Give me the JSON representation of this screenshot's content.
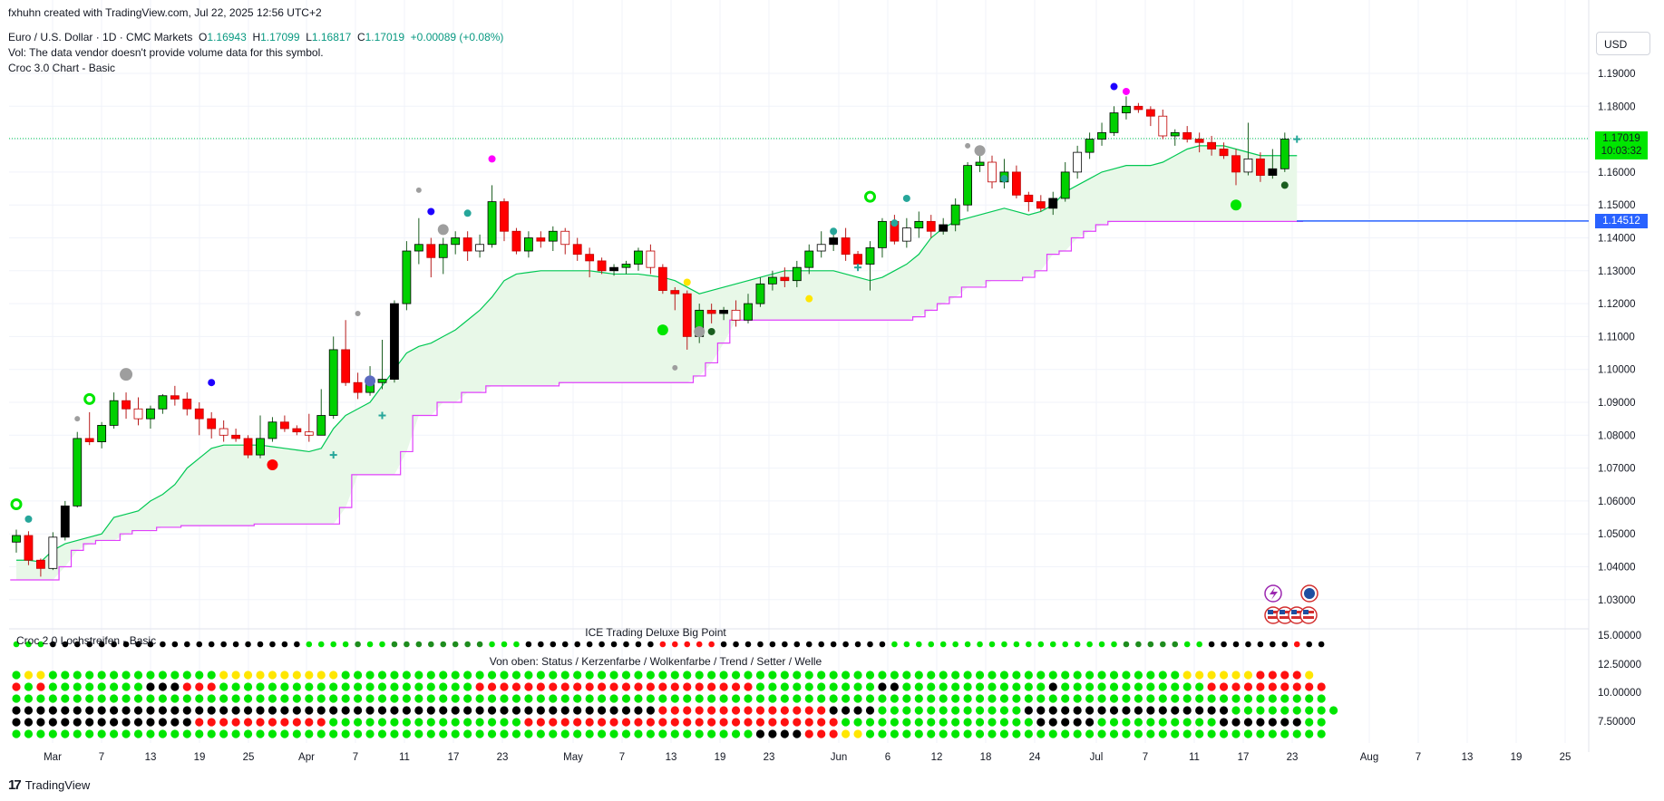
{
  "header": {
    "attribution": "fxhuhn created with TradingView.com, Jul 22, 2025 12:56 UTC+2",
    "symbol": "Euro / U.S. Dollar · 1D · CMC Markets",
    "open_label": "O",
    "open": "1.16943",
    "high_label": "H",
    "high": "1.17099",
    "low_label": "L",
    "low": "1.16817",
    "close_label": "C",
    "close": "1.17019",
    "change": "+0.00089 (+0.08%)",
    "volume_note": "Vol: The data vendor doesn't provide volume data for this symbol.",
    "indicator": "Croc 3.0 Chart - Basic"
  },
  "currency": "USD",
  "last_price": {
    "price": "1.17019",
    "countdown": "10:03:32"
  },
  "horizontal_line": {
    "price": "1.14512",
    "value": 1.14512
  },
  "colors": {
    "up": "#00d000",
    "down": "#ff0000",
    "neutral_body": "#000000",
    "cloud_line": "#00c853",
    "cloud_fill": "#e8f8e8",
    "magenta": "#e040fb",
    "blue_line": "#2962ff",
    "grid": "#f0f3fa"
  },
  "chart_data": {
    "type": "candlestick",
    "y_ticks": [
      "1.19000",
      "1.18000",
      "1.17000",
      "1.16000",
      "1.15000",
      "1.14000",
      "1.13000",
      "1.12000",
      "1.11000",
      "1.10000",
      "1.09000",
      "1.08000",
      "1.07000",
      "1.06000",
      "1.05000",
      "1.04000",
      "1.03000"
    ],
    "ylim": [
      1.022,
      1.196
    ],
    "x_ticks": [
      "Mar",
      "7",
      "13",
      "19",
      "25",
      "Apr",
      "7",
      "11",
      "17",
      "23",
      "May",
      "7",
      "13",
      "19",
      "23",
      "Jun",
      "6",
      "12",
      "18",
      "24",
      "Jul",
      "7",
      "11",
      "17",
      "23",
      "Aug",
      "7",
      "13",
      "19",
      "25"
    ],
    "candles": [
      [
        1.0475,
        1.0513,
        1.0443,
        1.0495
      ],
      [
        1.0495,
        1.0508,
        1.0405,
        1.042
      ],
      [
        1.042,
        1.0425,
        1.037,
        1.0395
      ],
      [
        1.0395,
        1.0505,
        1.039,
        1.049
      ],
      [
        1.049,
        1.06,
        1.048,
        1.0585
      ],
      [
        1.0585,
        1.081,
        1.058,
        1.079
      ],
      [
        1.079,
        1.087,
        1.077,
        1.078
      ],
      [
        1.078,
        1.084,
        1.076,
        1.083
      ],
      [
        1.083,
        1.093,
        1.082,
        1.0905
      ],
      [
        1.0905,
        1.093,
        1.085,
        1.088
      ],
      [
        1.088,
        1.0915,
        1.083,
        1.085
      ],
      [
        1.085,
        1.089,
        1.082,
        1.088
      ],
      [
        1.088,
        1.0925,
        1.0865,
        1.092
      ],
      [
        1.092,
        1.095,
        1.089,
        1.091
      ],
      [
        1.091,
        1.093,
        1.086,
        1.088
      ],
      [
        1.088,
        1.09,
        1.08,
        1.085
      ],
      [
        1.085,
        1.087,
        1.079,
        1.082
      ],
      [
        1.082,
        1.0845,
        1.078,
        1.08
      ],
      [
        1.08,
        1.082,
        1.078,
        1.079
      ],
      [
        1.079,
        1.08,
        1.073,
        1.074
      ],
      [
        1.074,
        1.086,
        1.073,
        1.079
      ],
      [
        1.079,
        1.0855,
        1.078,
        1.084
      ],
      [
        1.084,
        1.086,
        1.081,
        1.082
      ],
      [
        1.082,
        1.083,
        1.08,
        1.081
      ],
      [
        1.081,
        1.0865,
        1.078,
        1.08
      ],
      [
        1.08,
        1.094,
        1.08,
        1.086
      ],
      [
        1.086,
        1.11,
        1.085,
        1.106
      ],
      [
        1.106,
        1.115,
        1.095,
        1.096
      ],
      [
        1.096,
        1.099,
        1.091,
        1.093
      ],
      [
        1.093,
        1.101,
        1.092,
        1.096
      ],
      [
        1.096,
        1.109,
        1.094,
        1.097
      ],
      [
        1.097,
        1.121,
        1.096,
        1.12
      ],
      [
        1.12,
        1.139,
        1.118,
        1.136
      ],
      [
        1.136,
        1.146,
        1.132,
        1.138
      ],
      [
        1.138,
        1.14,
        1.128,
        1.134
      ],
      [
        1.134,
        1.14,
        1.129,
        1.138
      ],
      [
        1.138,
        1.142,
        1.135,
        1.14
      ],
      [
        1.14,
        1.142,
        1.133,
        1.136
      ],
      [
        1.136,
        1.141,
        1.134,
        1.138
      ],
      [
        1.138,
        1.156,
        1.137,
        1.151
      ],
      [
        1.151,
        1.152,
        1.139,
        1.142
      ],
      [
        1.142,
        1.143,
        1.135,
        1.136
      ],
      [
        1.136,
        1.142,
        1.134,
        1.14
      ],
      [
        1.14,
        1.142,
        1.137,
        1.139
      ],
      [
        1.139,
        1.1435,
        1.136,
        1.142
      ],
      [
        1.142,
        1.143,
        1.135,
        1.138
      ],
      [
        1.138,
        1.14,
        1.133,
        1.135
      ],
      [
        1.135,
        1.137,
        1.128,
        1.133
      ],
      [
        1.133,
        1.134,
        1.129,
        1.13
      ],
      [
        1.13,
        1.132,
        1.1285,
        1.131
      ],
      [
        1.131,
        1.133,
        1.129,
        1.132
      ],
      [
        1.132,
        1.137,
        1.13,
        1.136
      ],
      [
        1.136,
        1.138,
        1.129,
        1.131
      ],
      [
        1.131,
        1.132,
        1.123,
        1.124
      ],
      [
        1.124,
        1.125,
        1.118,
        1.123
      ],
      [
        1.123,
        1.124,
        1.106,
        1.11
      ],
      [
        1.11,
        1.12,
        1.108,
        1.118
      ],
      [
        1.118,
        1.12,
        1.114,
        1.117
      ],
      [
        1.117,
        1.119,
        1.115,
        1.118
      ],
      [
        1.118,
        1.121,
        1.113,
        1.115
      ],
      [
        1.115,
        1.123,
        1.114,
        1.12
      ],
      [
        1.12,
        1.128,
        1.119,
        1.126
      ],
      [
        1.126,
        1.13,
        1.124,
        1.128
      ],
      [
        1.128,
        1.131,
        1.125,
        1.127
      ],
      [
        1.127,
        1.133,
        1.125,
        1.131
      ],
      [
        1.131,
        1.138,
        1.129,
        1.136
      ],
      [
        1.136,
        1.142,
        1.134,
        1.138
      ],
      [
        1.138,
        1.143,
        1.136,
        1.14
      ],
      [
        1.14,
        1.143,
        1.133,
        1.135
      ],
      [
        1.135,
        1.136,
        1.13,
        1.132
      ],
      [
        1.132,
        1.139,
        1.124,
        1.137
      ],
      [
        1.137,
        1.146,
        1.134,
        1.145
      ],
      [
        1.145,
        1.147,
        1.138,
        1.139
      ],
      [
        1.139,
        1.146,
        1.137,
        1.143
      ],
      [
        1.143,
        1.148,
        1.14,
        1.145
      ],
      [
        1.145,
        1.147,
        1.14,
        1.142
      ],
      [
        1.142,
        1.146,
        1.141,
        1.144
      ],
      [
        1.144,
        1.152,
        1.142,
        1.15
      ],
      [
        1.15,
        1.163,
        1.148,
        1.162
      ],
      [
        1.162,
        1.166,
        1.16,
        1.163
      ],
      [
        1.163,
        1.165,
        1.155,
        1.157
      ],
      [
        1.157,
        1.164,
        1.155,
        1.16
      ],
      [
        1.16,
        1.162,
        1.152,
        1.153
      ],
      [
        1.153,
        1.154,
        1.148,
        1.151
      ],
      [
        1.151,
        1.153,
        1.148,
        1.149
      ],
      [
        1.149,
        1.154,
        1.147,
        1.152
      ],
      [
        1.152,
        1.163,
        1.151,
        1.16
      ],
      [
        1.16,
        1.168,
        1.158,
        1.166
      ],
      [
        1.166,
        1.172,
        1.164,
        1.17
      ],
      [
        1.17,
        1.175,
        1.168,
        1.172
      ],
      [
        1.172,
        1.18,
        1.171,
        1.178
      ],
      [
        1.178,
        1.183,
        1.176,
        1.18
      ],
      [
        1.18,
        1.181,
        1.178,
        1.179
      ],
      [
        1.179,
        1.18,
        1.174,
        1.177
      ],
      [
        1.177,
        1.179,
        1.17,
        1.171
      ],
      [
        1.171,
        1.173,
        1.168,
        1.172
      ],
      [
        1.172,
        1.174,
        1.169,
        1.17
      ],
      [
        1.17,
        1.172,
        1.166,
        1.169
      ],
      [
        1.169,
        1.171,
        1.165,
        1.167
      ],
      [
        1.167,
        1.169,
        1.164,
        1.165
      ],
      [
        1.165,
        1.167,
        1.156,
        1.16
      ],
      [
        1.16,
        1.175,
        1.159,
        1.164
      ],
      [
        1.164,
        1.166,
        1.157,
        1.159
      ],
      [
        1.159,
        1.167,
        1.158,
        1.161
      ],
      [
        1.161,
        1.172,
        1.16,
        1.17
      ]
    ],
    "cloud_upper": [
      1.042,
      1.042,
      1.0415,
      1.045,
      1.047,
      1.048,
      1.049,
      1.05,
      1.055,
      1.056,
      1.057,
      1.06,
      1.062,
      1.065,
      1.07,
      1.073,
      1.076,
      1.077,
      1.077,
      1.077,
      1.077,
      1.0765,
      1.076,
      1.0755,
      1.075,
      1.076,
      1.082,
      1.086,
      1.088,
      1.09,
      1.095,
      1.1,
      1.105,
      1.107,
      1.108,
      1.11,
      1.112,
      1.115,
      1.118,
      1.122,
      1.127,
      1.129,
      1.1295,
      1.13,
      1.13,
      1.13,
      1.13,
      1.13,
      1.1295,
      1.129,
      1.129,
      1.129,
      1.1285,
      1.128,
      1.127,
      1.125,
      1.123,
      1.124,
      1.125,
      1.126,
      1.127,
      1.128,
      1.129,
      1.13,
      1.13,
      1.13,
      1.13,
      1.13,
      1.129,
      1.128,
      1.127,
      1.128,
      1.13,
      1.132,
      1.135,
      1.14,
      1.143,
      1.145,
      1.146,
      1.147,
      1.148,
      1.149,
      1.148,
      1.147,
      1.148,
      1.15,
      1.154,
      1.156,
      1.158,
      1.16,
      1.161,
      1.162,
      1.162,
      1.162,
      1.163,
      1.165,
      1.167,
      1.168,
      1.168,
      1.168,
      1.167,
      1.166,
      1.165,
      1.165,
      1.165,
      1.165
    ],
    "cloud_lower": [
      1.036,
      1.036,
      1.036,
      1.036,
      1.04,
      1.045,
      1.047,
      1.048,
      1.048,
      1.05,
      1.051,
      1.051,
      1.052,
      1.052,
      1.0525,
      1.0525,
      1.0525,
      1.0525,
      1.0525,
      1.0525,
      1.053,
      1.053,
      1.053,
      1.053,
      1.053,
      1.053,
      1.053,
      1.058,
      1.068,
      1.068,
      1.068,
      1.068,
      1.075,
      1.086,
      1.086,
      1.09,
      1.09,
      1.093,
      1.093,
      1.095,
      1.095,
      1.095,
      1.095,
      1.095,
      1.095,
      1.096,
      1.096,
      1.096,
      1.096,
      1.096,
      1.096,
      1.096,
      1.096,
      1.096,
      1.096,
      1.096,
      1.098,
      1.102,
      1.108,
      1.115,
      1.115,
      1.115,
      1.115,
      1.115,
      1.115,
      1.115,
      1.115,
      1.115,
      1.115,
      1.115,
      1.115,
      1.115,
      1.115,
      1.115,
      1.116,
      1.118,
      1.12,
      1.122,
      1.125,
      1.125,
      1.127,
      1.127,
      1.127,
      1.128,
      1.13,
      1.135,
      1.136,
      1.14,
      1.142,
      1.144,
      1.145,
      1.145,
      1.145,
      1.145,
      1.145,
      1.145,
      1.145,
      1.145,
      1.145,
      1.145,
      1.145,
      1.145,
      1.145,
      1.145,
      1.145,
      1.145
    ],
    "markers": [
      {
        "i": 0,
        "price": 1.059,
        "kind": "ring",
        "color": "#00e600",
        "r": 5
      },
      {
        "i": 1,
        "price": 1.0545,
        "kind": "dot",
        "color": "#26a69a",
        "r": 4
      },
      {
        "i": 5,
        "price": 1.085,
        "kind": "dot",
        "color": "#9e9e9e",
        "r": 3
      },
      {
        "i": 6,
        "price": 1.091,
        "kind": "ring",
        "color": "#00e600",
        "r": 5
      },
      {
        "i": 9,
        "price": 1.0985,
        "kind": "dot",
        "color": "#9e9e9e",
        "r": 7
      },
      {
        "i": 16,
        "price": 1.096,
        "kind": "dot",
        "color": "#1e00ff",
        "r": 4
      },
      {
        "i": 21,
        "price": 1.071,
        "kind": "dot",
        "color": "#ff0000",
        "r": 6
      },
      {
        "i": 26,
        "price": 1.074,
        "kind": "plus",
        "color": "#26a69a",
        "r": 4
      },
      {
        "i": 28,
        "price": 1.117,
        "kind": "dot",
        "color": "#9e9e9e",
        "r": 3
      },
      {
        "i": 29,
        "price": 1.0965,
        "kind": "dot",
        "color": "#5c6bc0",
        "r": 6
      },
      {
        "i": 30,
        "price": 1.086,
        "kind": "plus",
        "color": "#26a69a",
        "r": 4
      },
      {
        "i": 33,
        "price": 1.1545,
        "kind": "dot",
        "color": "#9e9e9e",
        "r": 3
      },
      {
        "i": 34,
        "price": 1.148,
        "kind": "dot",
        "color": "#1e00ff",
        "r": 4
      },
      {
        "i": 35,
        "price": 1.1425,
        "kind": "dot",
        "color": "#9e9e9e",
        "r": 6
      },
      {
        "i": 37,
        "price": 1.1475,
        "kind": "dot",
        "color": "#26a69a",
        "r": 4
      },
      {
        "i": 39,
        "price": 1.164,
        "kind": "dot",
        "color": "#ff00ff",
        "r": 4
      },
      {
        "i": 53,
        "price": 1.112,
        "kind": "dot",
        "color": "#00e600",
        "r": 6
      },
      {
        "i": 54,
        "price": 1.1005,
        "kind": "dot",
        "color": "#9e9e9e",
        "r": 3
      },
      {
        "i": 55,
        "price": 1.1265,
        "kind": "dot",
        "color": "#ffe600",
        "r": 4
      },
      {
        "i": 56,
        "price": 1.1115,
        "kind": "dot",
        "color": "#9e9e9e",
        "r": 6
      },
      {
        "i": 57,
        "price": 1.1115,
        "kind": "dot",
        "color": "#1b5e20",
        "r": 4
      },
      {
        "i": 65,
        "price": 1.1215,
        "kind": "dot",
        "color": "#ffe600",
        "r": 4
      },
      {
        "i": 67,
        "price": 1.142,
        "kind": "dot",
        "color": "#26a69a",
        "r": 4
      },
      {
        "i": 69,
        "price": 1.131,
        "kind": "plus",
        "color": "#26a69a",
        "r": 4
      },
      {
        "i": 70,
        "price": 1.1525,
        "kind": "ring",
        "color": "#00e600",
        "r": 5
      },
      {
        "i": 72,
        "price": 1.1445,
        "kind": "dot",
        "color": "#26a69a",
        "r": 4
      },
      {
        "i": 73,
        "price": 1.152,
        "kind": "dot",
        "color": "#26a69a",
        "r": 4
      },
      {
        "i": 78,
        "price": 1.168,
        "kind": "dot",
        "color": "#9e9e9e",
        "r": 3
      },
      {
        "i": 79,
        "price": 1.1665,
        "kind": "dot",
        "color": "#9e9e9e",
        "r": 6
      },
      {
        "i": 81,
        "price": 1.158,
        "kind": "dot",
        "color": "#26a69a",
        "r": 4
      },
      {
        "i": 90,
        "price": 1.186,
        "kind": "dot",
        "color": "#1e00ff",
        "r": 4
      },
      {
        "i": 91,
        "price": 1.1845,
        "kind": "dot",
        "color": "#ff00ff",
        "r": 4
      },
      {
        "i": 100,
        "price": 1.15,
        "kind": "dot",
        "color": "#00e600",
        "r": 6
      },
      {
        "i": 104,
        "price": 1.156,
        "kind": "dot",
        "color": "#1b5e20",
        "r": 4
      },
      {
        "i": 105,
        "price": 1.17,
        "kind": "plus",
        "color": "#26a69a",
        "r": 4
      }
    ],
    "subpane": {
      "title": "ICE Trading Deluxe Big Point",
      "subtitle": "Von oben: Status / Kerzenfarbe / Wolkenfarbe / Trend / Setter / Welle",
      "label": "Croc 2.0 Lochstreifen - Basic",
      "y_ticks": [
        "15.00000",
        "12.50000",
        "10.00000",
        "7.50000"
      ],
      "dot_colors": {
        "G": "#00e600",
        "D": "#1e8c1e",
        "K": "#000000",
        "R": "#ff1010",
        "Y": "#ffe600"
      },
      "rows": [
        "GGGKKKKKKKKKKKKKKKKKKKKKGGGGDGGDDDDDDDDGGGKKKKKKKKKKKRRRRRKKKKKKKKKKKKKKGGGGGGGGGGGGGGGGGGGDDDDDGGKKKKKKKRKK",
        "GYYGGGGGGGGGGGGGGYYYYYYYYYYGGGGGGGGGGGGGGGGGGGGGGGGGGGGGGGGGGGGGGGGGGGGGGGGGGGGGGGGGGGGGGGGGGGGGYYYYYYRRRRY",
        "RGRGGGGGGGGKKKRRRGGGGGGGGGGGGGGGGGGGGGRRRRRRRRRRRRRRRRRRRRRRRGGGGGGGGGGKKGGGGGGGGGGGGKGGGGGGGGGGGGRRRRRRRRRR",
        "GGGGGGGGGGGGGGGGGGGGGGGGGGGGGGGGGGGGGGGGGGGGGGGGGGGGGGGGGGGGGGGGGGGGGGGGGGGGGGGGGGGGGGGGGGGGGGGGGGGGGGGGGGGG",
        "KKKKKKKKKKKKKKKKKKKKKKKKKKKKKKKKKKKKKKKKKKKKKKKKKKKKKRRRRRRRRRRRRRRKKKKGGGGGGGGGGGGKKKKKKKKKKKKKKKKKGGGGGGGGG",
        "KKKKKKKKKKKKKKKRRRRRRRRRRRGGGGGGGGGGGGGGGGRRRRRRRRRRRRRRRRRRRRRRRRRRGGGGGGGGGGGGGGGGKKKKKGGGGGGGGGGKKKKKKKGG",
        "GGGGGGGGGGGGGGGGGGGGGGGGGGGGGGGGGGGGGGGGGGGGGGGGGGGGGGGGGGGGGKKKKRRRYYGGGGGGGGGGGGGGGGGGGGGGGGGGGGGGGGGGGGGG"
      ]
    }
  },
  "pane_icons": {
    "lightning": "lightning-icon",
    "globe": "globe-icon",
    "flags": "us-flag-icon"
  },
  "footer": {
    "brand": "TradingView"
  }
}
